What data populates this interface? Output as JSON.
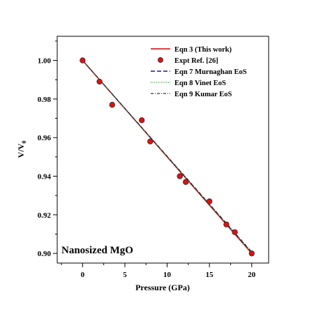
{
  "chart_data": {
    "type": "line",
    "xlabel": "Pressure (GPa)",
    "ylabel": "V/V",
    "ylabel_subscript": "0",
    "xlim": [
      -3,
      22
    ],
    "ylim": [
      0.895,
      1.0125
    ],
    "x_ticks": [
      0,
      5,
      10,
      15,
      20
    ],
    "x_tick_labels": [
      "0",
      "5",
      "10",
      "15",
      "20"
    ],
    "y_ticks": [
      0.9,
      0.92,
      0.94,
      0.96,
      0.98,
      1.0
    ],
    "y_tick_labels": [
      "0.90",
      "0.92",
      "0.94",
      "0.96",
      "0.98",
      "1.00"
    ],
    "annotation": "Nanosized MgO",
    "legend_position": "top-right",
    "grid": false,
    "series": [
      {
        "name": "Eqn 3 (This work)",
        "style": "solid",
        "color": "#cc0000",
        "x": [
          0,
          20
        ],
        "y": [
          1.0,
          0.9
        ]
      },
      {
        "name": "Expt  Ref. [26]",
        "style": "markers",
        "color": "#dd1111",
        "x": [
          0,
          2,
          3.5,
          7,
          8,
          11.5,
          12.2,
          15,
          17,
          18,
          20
        ],
        "y": [
          1.0,
          0.989,
          0.977,
          0.969,
          0.958,
          0.94,
          0.937,
          0.927,
          0.915,
          0.911,
          0.9
        ]
      },
      {
        "name": "Eqn 7 Murnaghan EoS",
        "style": "dashed",
        "color": "#1a1a7a",
        "x": [
          0,
          20
        ],
        "y": [
          1.0,
          0.9005
        ]
      },
      {
        "name": "Eqn 8 Vinet EoS",
        "style": "dotted",
        "color": "#2e8b2e",
        "x": [
          0,
          20
        ],
        "y": [
          1.0,
          0.9003
        ]
      },
      {
        "name": "Eqn 9 Kumar EoS",
        "style": "dashdot",
        "color": "#333333",
        "x": [
          0,
          20
        ],
        "y": [
          1.0,
          0.9008
        ]
      }
    ]
  }
}
